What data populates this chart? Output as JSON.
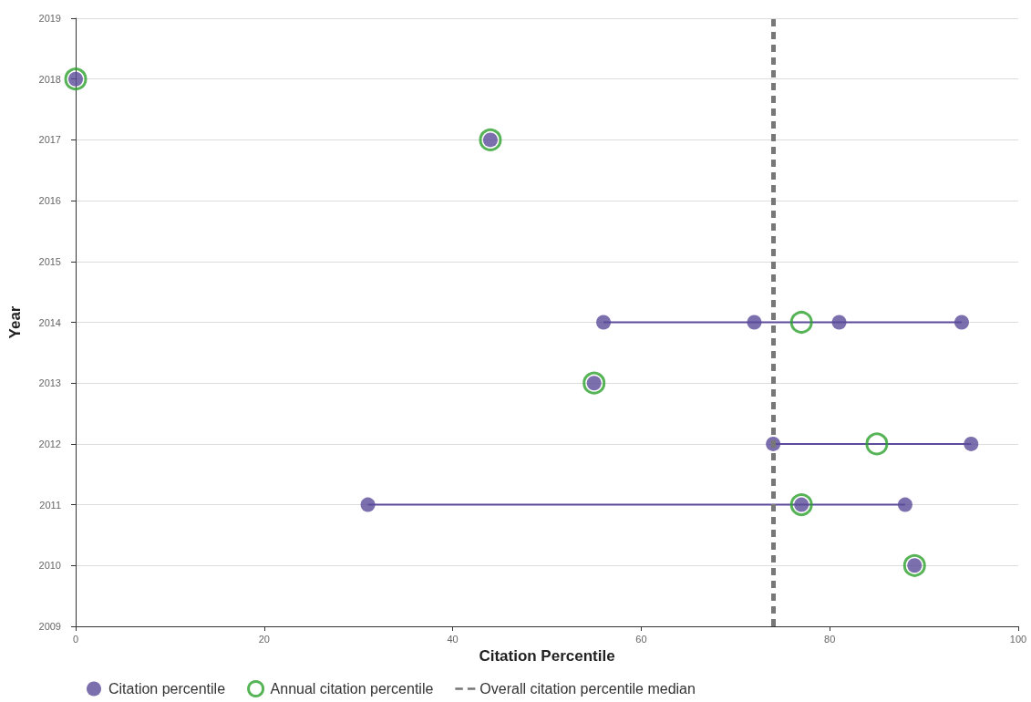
{
  "chart_data": {
    "type": "scatter",
    "xlabel": "Citation Percentile",
    "ylabel": "Year",
    "xlim": [
      0,
      100
    ],
    "xticks": [
      0,
      20,
      40,
      60,
      80,
      100
    ],
    "ylim": [
      2009,
      2019
    ],
    "yticks": [
      2009,
      2010,
      2011,
      2012,
      2013,
      2014,
      2015,
      2016,
      2017,
      2018,
      2019
    ],
    "grid": "y",
    "legend": "bottom",
    "marker": "circle",
    "series": [
      {
        "type": "line",
        "color": "#5b4b9a",
        "marker": "none",
        "x": [
          56,
          94
        ],
        "values": [
          2014,
          2014
        ]
      },
      {
        "type": "line",
        "color": "#5b4b9a",
        "marker": "none",
        "x": [
          74,
          95
        ],
        "values": [
          2012,
          2012
        ]
      },
      {
        "type": "line",
        "color": "#5b4b9a",
        "marker": "none",
        "x": [
          31,
          88
        ],
        "values": [
          2011,
          2011
        ]
      },
      {
        "name": "Citation percentile",
        "color": "#5b4b9a",
        "x": [
          0,
          44,
          56,
          72,
          81,
          94,
          55,
          74,
          95,
          31,
          77,
          88,
          89
        ],
        "values": [
          2018,
          2017,
          2014,
          2014,
          2014,
          2014,
          2013,
          2012,
          2012,
          2011,
          2011,
          2011,
          2010
        ]
      },
      {
        "name": "Annual citation percentile",
        "color": "#2ca02c",
        "marker": "circle",
        "x": [
          0,
          44,
          77,
          55,
          85,
          77,
          89
        ],
        "values": [
          2018,
          2017,
          2014,
          2013,
          2012,
          2011,
          2010
        ]
      }
    ],
    "ref_lines": [
      {
        "axis": "x",
        "value": 74,
        "label": "Overall citation percentile median",
        "color": "#777777",
        "line_style": "dashed"
      }
    ]
  }
}
